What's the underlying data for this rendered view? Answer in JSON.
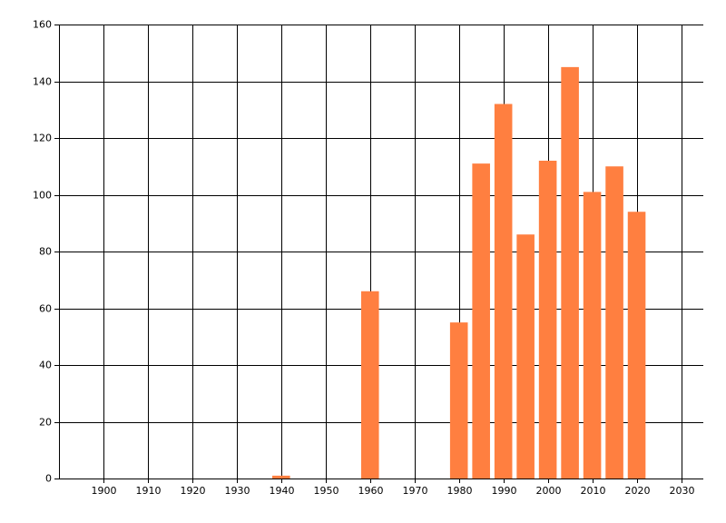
{
  "chart_data": {
    "type": "bar",
    "x": [
      1940,
      1960,
      1980,
      1985,
      1990,
      1995,
      2000,
      2005,
      2010,
      2015,
      2020
    ],
    "values": [
      1,
      66,
      55,
      111,
      132,
      86,
      112,
      145,
      101,
      110,
      94
    ],
    "color": "#ff7f40",
    "xlim": [
      1890,
      2035
    ],
    "xticks": [
      1900,
      1910,
      1920,
      1930,
      1940,
      1950,
      1960,
      1970,
      1980,
      1990,
      2000,
      2010,
      2020,
      2030
    ],
    "ylim": [
      0,
      160
    ],
    "yticks": [
      0,
      20,
      40,
      60,
      80,
      100,
      120,
      140,
      160
    ],
    "grid": true
  }
}
